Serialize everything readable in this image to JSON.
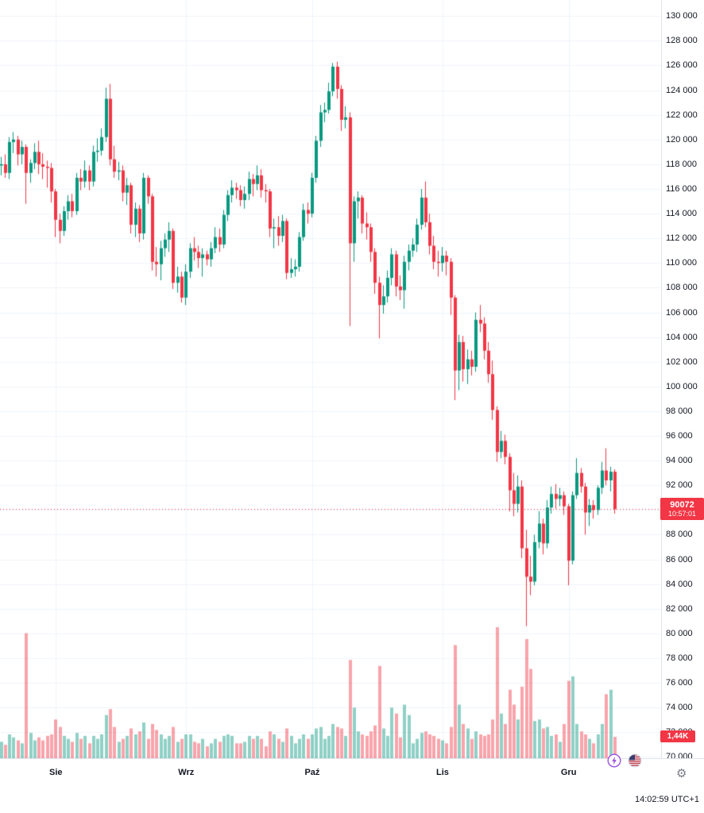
{
  "colors": {
    "background": "#ffffff",
    "up": "#089981",
    "down": "#f23645",
    "up_volume": "rgba(8,153,129,0.45)",
    "down_volume": "rgba(242,54,69,0.45)",
    "grid": "#f0f3fa",
    "axis_text": "#131722",
    "separator": "#e0e3eb",
    "price_line": "#f23645",
    "badge_bg": "#f23645",
    "badge_text": "#ffffff",
    "boost_purple": "#9b51e0",
    "flag_red": "#b22234",
    "flag_blue": "#3c3b6e",
    "gear_gray": "#787b86"
  },
  "last_price_label": {
    "price": "90072",
    "countdown": "10:57:01"
  },
  "last_volume_label": "1,44K",
  "clock": "14:02:59 UTC+1",
  "icons": {
    "gear_glyph": "⚙",
    "boost": "lightning-icon",
    "flag": "us-flag-icon",
    "gear": "gear-icon"
  },
  "chart_data": {
    "type": "candlestick",
    "title": "",
    "x_axis": {
      "tick_labels": [
        "Sie",
        "Wrz",
        "Paź",
        "Lis",
        "Gru"
      ],
      "tick_indices": [
        13,
        44,
        74,
        105,
        135
      ]
    },
    "y_axis": {
      "min": 70000,
      "max": 130000,
      "tick_step": 2000
    },
    "grid": true,
    "volume_unit": "K",
    "last_price": 90072,
    "last_volume": 1.44,
    "candles_format": [
      "open",
      "high",
      "low",
      "close",
      "volume_K"
    ],
    "candles": [
      [
        117900,
        118600,
        117100,
        118000,
        1.1
      ],
      [
        118000,
        118800,
        116900,
        117300,
        0.9
      ],
      [
        117300,
        120200,
        116800,
        119800,
        1.6
      ],
      [
        119800,
        120600,
        118900,
        120000,
        1.4
      ],
      [
        120000,
        120300,
        117900,
        118800,
        1.2
      ],
      [
        118800,
        119900,
        118000,
        119400,
        1.0
      ],
      [
        119400,
        119600,
        114800,
        117300,
        8.4
      ],
      [
        117300,
        118400,
        116500,
        118100,
        1.7
      ],
      [
        118100,
        119700,
        117600,
        119000,
        1.2
      ],
      [
        119000,
        119900,
        117200,
        118000,
        1.4
      ],
      [
        118000,
        118900,
        116800,
        117800,
        1.2
      ],
      [
        117800,
        118300,
        116100,
        117700,
        1.5
      ],
      [
        117700,
        118100,
        114900,
        115800,
        1.6
      ],
      [
        115800,
        116000,
        112100,
        113500,
        2.6
      ],
      [
        113500,
        114000,
        111600,
        112600,
        2.1
      ],
      [
        112600,
        114600,
        112200,
        114200,
        1.5
      ],
      [
        114200,
        115500,
        113500,
        115000,
        1.3
      ],
      [
        115000,
        115600,
        113700,
        114200,
        1.1
      ],
      [
        114200,
        117300,
        113900,
        116900,
        1.7
      ],
      [
        116900,
        117600,
        115900,
        116600,
        1.3
      ],
      [
        116600,
        118300,
        116100,
        117500,
        1.5
      ],
      [
        117500,
        117900,
        115900,
        116600,
        1.0
      ],
      [
        116600,
        119500,
        116200,
        119000,
        1.5
      ],
      [
        119000,
        120100,
        118200,
        119100,
        1.3
      ],
      [
        119100,
        120900,
        118700,
        120200,
        1.6
      ],
      [
        120200,
        124200,
        119800,
        123300,
        2.9
      ],
      [
        123300,
        124500,
        117900,
        118400,
        3.3
      ],
      [
        118400,
        119500,
        116900,
        117400,
        2.1
      ],
      [
        117400,
        118200,
        116700,
        117500,
        1.1
      ],
      [
        117500,
        117900,
        115000,
        115700,
        1.3
      ],
      [
        115700,
        116900,
        114700,
        116300,
        1.5
      ],
      [
        116300,
        116500,
        112400,
        113100,
        2.0
      ],
      [
        113100,
        114900,
        112100,
        114400,
        1.6
      ],
      [
        114400,
        114700,
        111700,
        112400,
        1.8
      ],
      [
        112400,
        117300,
        111900,
        116900,
        2.4
      ],
      [
        116900,
        117100,
        114800,
        115400,
        1.3
      ],
      [
        115400,
        115600,
        109400,
        110100,
        2.3
      ],
      [
        110100,
        111300,
        108900,
        109900,
        1.9
      ],
      [
        109900,
        111800,
        108600,
        111200,
        1.6
      ],
      [
        111200,
        112400,
        110500,
        111900,
        1.3
      ],
      [
        111900,
        113300,
        110900,
        112600,
        1.5
      ],
      [
        112600,
        112800,
        107900,
        108400,
        2.1
      ],
      [
        108400,
        109700,
        107600,
        108900,
        1.1
      ],
      [
        108900,
        109300,
        106800,
        107200,
        1.3
      ],
      [
        107200,
        109900,
        106600,
        109300,
        1.6
      ],
      [
        109300,
        111600,
        108800,
        111200,
        1.6
      ],
      [
        111200,
        112100,
        110200,
        110900,
        1.1
      ],
      [
        110900,
        111400,
        109600,
        110400,
        1.0
      ],
      [
        110400,
        111200,
        108900,
        110700,
        1.3
      ],
      [
        110700,
        111000,
        109800,
        110300,
        0.8
      ],
      [
        110300,
        111700,
        109700,
        111200,
        1.0
      ],
      [
        111200,
        112900,
        110800,
        112100,
        1.3
      ],
      [
        112100,
        112800,
        110900,
        111500,
        1.1
      ],
      [
        111500,
        114300,
        111200,
        113900,
        1.5
      ],
      [
        113900,
        115900,
        113400,
        115500,
        1.6
      ],
      [
        115500,
        116700,
        114900,
        116100,
        1.5
      ],
      [
        116100,
        116500,
        115200,
        115900,
        1.0
      ],
      [
        115900,
        116300,
        114600,
        115100,
        1.0
      ],
      [
        115100,
        116200,
        114400,
        115600,
        1.1
      ],
      [
        115600,
        117400,
        115100,
        116800,
        1.5
      ],
      [
        116800,
        117200,
        115400,
        116400,
        1.3
      ],
      [
        116400,
        117900,
        115900,
        117100,
        1.5
      ],
      [
        117100,
        117600,
        115300,
        115900,
        1.3
      ],
      [
        115900,
        116400,
        114900,
        115800,
        0.8
      ],
      [
        115800,
        116000,
        112100,
        112800,
        1.8
      ],
      [
        112800,
        113600,
        111200,
        112900,
        1.6
      ],
      [
        112900,
        113800,
        111400,
        112200,
        1.3
      ],
      [
        112200,
        113900,
        111700,
        113400,
        1.1
      ],
      [
        113400,
        113600,
        108700,
        109200,
        2.0
      ],
      [
        109200,
        110400,
        108800,
        109500,
        1.5
      ],
      [
        109500,
        110300,
        108900,
        109700,
        1.0
      ],
      [
        109700,
        112500,
        109300,
        112100,
        1.3
      ],
      [
        112100,
        114800,
        111800,
        114300,
        1.6
      ],
      [
        114300,
        114900,
        113200,
        114000,
        1.3
      ],
      [
        114000,
        117300,
        113700,
        116900,
        1.6
      ],
      [
        116900,
        120300,
        116500,
        119900,
        2.0
      ],
      [
        119900,
        122800,
        119400,
        122200,
        2.1
      ],
      [
        122200,
        123000,
        121400,
        122400,
        1.3
      ],
      [
        122400,
        124600,
        122100,
        123900,
        1.5
      ],
      [
        123900,
        126200,
        123500,
        125900,
        2.3
      ],
      [
        125900,
        126300,
        123300,
        124100,
        2.1
      ],
      [
        124100,
        124400,
        120700,
        121600,
        2.0
      ],
      [
        121600,
        122700,
        120900,
        121800,
        1.5
      ],
      [
        121800,
        122200,
        104900,
        111600,
        6.6
      ],
      [
        111600,
        115400,
        110100,
        115000,
        3.4
      ],
      [
        115000,
        115800,
        113600,
        115300,
        1.8
      ],
      [
        115300,
        115500,
        112400,
        113200,
        1.6
      ],
      [
        113200,
        114100,
        111900,
        112900,
        1.5
      ],
      [
        112900,
        113200,
        110100,
        110900,
        1.8
      ],
      [
        110900,
        111200,
        107500,
        108400,
        2.2
      ],
      [
        108400,
        108900,
        103900,
        106600,
        6.2
      ],
      [
        106600,
        108200,
        105900,
        107300,
        2.0
      ],
      [
        107300,
        109400,
        106800,
        108800,
        1.5
      ],
      [
        108800,
        111200,
        108200,
        110700,
        3.4
      ],
      [
        110700,
        111000,
        107300,
        108100,
        3.0
      ],
      [
        108100,
        109000,
        107000,
        107800,
        1.4
      ],
      [
        107800,
        110600,
        106300,
        110100,
        3.6
      ],
      [
        110100,
        111500,
        109400,
        111000,
        2.9
      ],
      [
        111000,
        112000,
        110500,
        111500,
        1.0
      ],
      [
        111500,
        113600,
        110900,
        113100,
        1.3
      ],
      [
        113100,
        116000,
        112700,
        115300,
        1.7
      ],
      [
        115300,
        116600,
        112900,
        113300,
        1.8
      ],
      [
        113300,
        114000,
        110700,
        111400,
        1.6
      ],
      [
        111400,
        112200,
        109500,
        110100,
        1.5
      ],
      [
        110100,
        111000,
        108900,
        110000,
        1.3
      ],
      [
        110000,
        111300,
        109300,
        110600,
        1.2
      ],
      [
        110600,
        111000,
        109000,
        110100,
        1.0
      ],
      [
        110100,
        110400,
        105800,
        107200,
        2.1
      ],
      [
        107200,
        107400,
        98900,
        101300,
        7.6
      ],
      [
        101300,
        104200,
        99700,
        103600,
        3.6
      ],
      [
        103600,
        104100,
        100400,
        101400,
        2.3
      ],
      [
        101400,
        103000,
        100200,
        102200,
        2.0
      ],
      [
        102200,
        102900,
        100900,
        101600,
        1.3
      ],
      [
        101600,
        106000,
        101200,
        105400,
        1.8
      ],
      [
        105400,
        106600,
        104400,
        105100,
        1.6
      ],
      [
        105100,
        105600,
        102200,
        102900,
        1.5
      ],
      [
        102900,
        103600,
        100300,
        101000,
        1.6
      ],
      [
        101000,
        102100,
        97300,
        98100,
        2.6
      ],
      [
        98100,
        98400,
        93900,
        94700,
        8.8
      ],
      [
        94700,
        96400,
        94200,
        95600,
        3.0
      ],
      [
        95600,
        96100,
        93700,
        94300,
        2.3
      ],
      [
        94300,
        94600,
        89900,
        91600,
        4.6
      ],
      [
        91600,
        93000,
        89500,
        90500,
        3.6
      ],
      [
        90500,
        92800,
        89800,
        91900,
        2.6
      ],
      [
        91900,
        92400,
        86100,
        86900,
        4.8
      ],
      [
        86900,
        88400,
        80600,
        84600,
        8.0
      ],
      [
        84600,
        86300,
        83100,
        84200,
        6.0
      ],
      [
        84200,
        88000,
        83900,
        87400,
        2.5
      ],
      [
        87400,
        89900,
        86900,
        88900,
        2.6
      ],
      [
        88900,
        89300,
        86400,
        87300,
        2.0
      ],
      [
        87300,
        90800,
        86900,
        90200,
        2.1
      ],
      [
        90200,
        91900,
        89700,
        91300,
        1.5
      ],
      [
        91300,
        92100,
        90100,
        90900,
        1.6
      ],
      [
        90900,
        91800,
        90300,
        91200,
        1.1
      ],
      [
        91200,
        91500,
        89600,
        90300,
        2.3
      ],
      [
        90300,
        90500,
        83900,
        85900,
        5.2
      ],
      [
        85900,
        91500,
        85600,
        91200,
        5.5
      ],
      [
        91200,
        94200,
        90900,
        93000,
        2.3
      ],
      [
        93000,
        93400,
        91400,
        91900,
        1.8
      ],
      [
        91900,
        92200,
        88000,
        89800,
        1.6
      ],
      [
        89800,
        90900,
        88700,
        90400,
        1.3
      ],
      [
        90400,
        90800,
        89300,
        90000,
        1.0
      ],
      [
        90000,
        92000,
        89600,
        91800,
        1.6
      ],
      [
        91800,
        93900,
        91300,
        93200,
        2.3
      ],
      [
        93200,
        95000,
        92000,
        92400,
        4.3
      ],
      [
        92400,
        93500,
        91500,
        93100,
        4.6
      ],
      [
        93100,
        93300,
        89700,
        90072,
        1.44
      ]
    ]
  }
}
